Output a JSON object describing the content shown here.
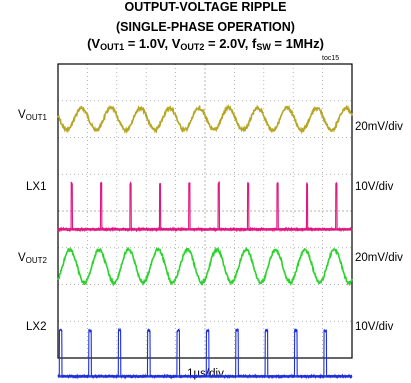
{
  "chart_data": {
    "type": "line",
    "title": "OUTPUT-VOLTAGE RIPPLE",
    "subtitle": "(SINGLE-PHASE OPERATION)",
    "conditions": {
      "open": "(V",
      "vout1_sub": "OUT1",
      "vout1_val": " = 1.0V, V",
      "vout2_sub": "OUT2",
      "vout2_val": " = 2.0V, f",
      "fsw_sub": "SW",
      "fsw_val": " = 1MHz)"
    },
    "figure_id": "toc15",
    "xlabel": "1µs/div",
    "time_divisions": 10,
    "voltage_divisions": 8,
    "grid": "dotted",
    "switching_period_us": 1,
    "channels": [
      {
        "id": "VOUT1",
        "label_main": "V",
        "label_sub": "OUT1",
        "scale": "20mV/div",
        "color": "#b5a626",
        "kind": "ripple",
        "ripple_pk_pk_mV": 12,
        "phase_us": 0.55,
        "divisions": 1.0
      },
      {
        "id": "LX1",
        "label_main": "LX1",
        "label_sub": "",
        "scale": "10V/div",
        "color": "#e0177f",
        "kind": "switch",
        "high_V": 5,
        "duty": 0.04,
        "phase_us": 0.45,
        "divisions": 1.0
      },
      {
        "id": "VOUT2",
        "label_main": "V",
        "label_sub": "OUT2",
        "scale": "20mV/div",
        "color": "#2ed12e",
        "kind": "ripple",
        "ripple_pk_pk_mV": 18,
        "phase_us": 0.15,
        "divisions": 1.0
      },
      {
        "id": "LX2",
        "label_main": "LX2",
        "label_sub": "",
        "scale": "10V/div",
        "color": "#1e2fd6",
        "kind": "switch",
        "high_V": 5,
        "duty": 0.08,
        "phase_us": 0.05,
        "divisions": 1.0
      }
    ]
  }
}
